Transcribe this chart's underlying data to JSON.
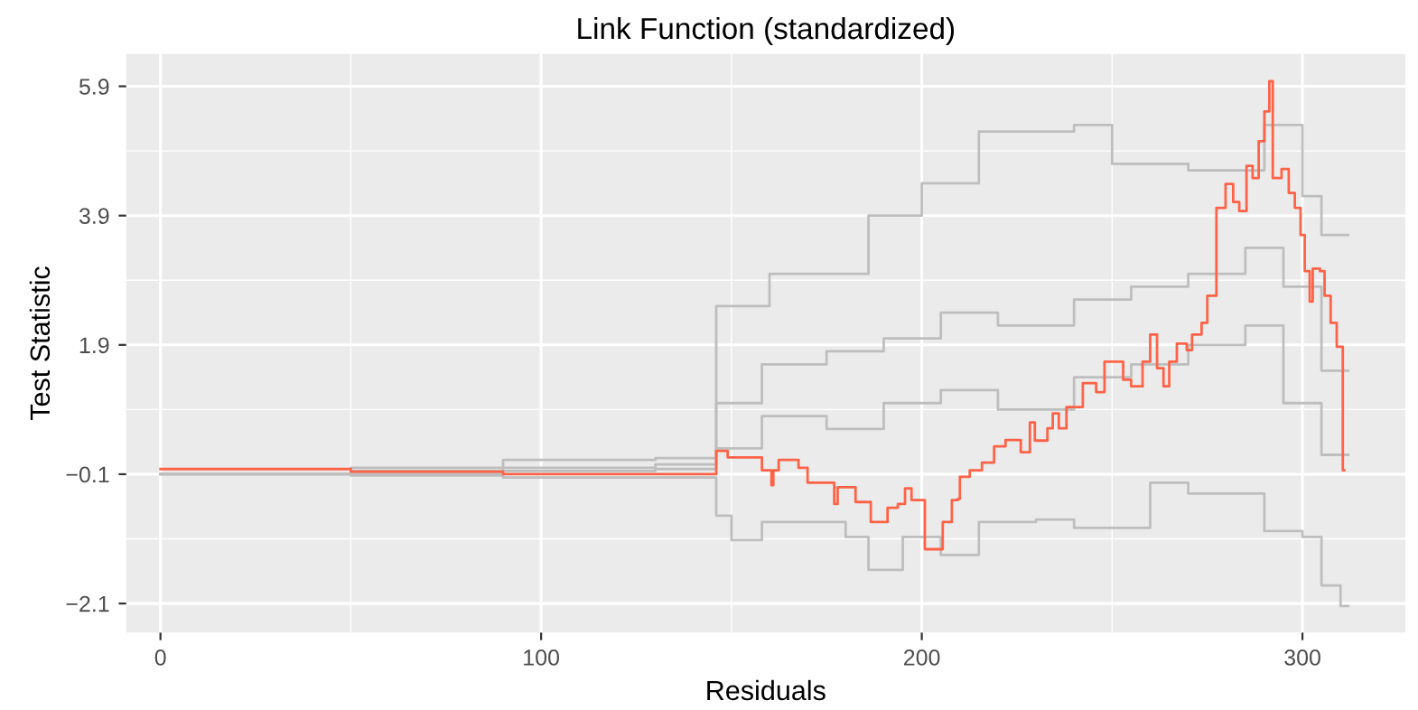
{
  "chart_data": {
    "type": "step",
    "title": "Link Function (standardized)",
    "xlabel": "Residuals",
    "ylabel": "Test Statistic",
    "xlim": [
      -9,
      327
    ],
    "ylim": [
      -2.55,
      6.4
    ],
    "xticks": [
      0,
      100,
      200,
      300
    ],
    "yticks": [
      {
        "value": -2.1,
        "label": "−2.1"
      },
      {
        "value": -0.1,
        "label": "−0.1"
      },
      1.9,
      3.9,
      5.9
    ],
    "grid": true,
    "series": [
      {
        "color": "#bebebe",
        "x": [
          0,
          50,
          90,
          130,
          146,
          160,
          186,
          200,
          215,
          240,
          250,
          270,
          290,
          300,
          305,
          312
        ],
        "values": [
          -0.1,
          0.0,
          0.12,
          0.15,
          2.5,
          3.0,
          3.9,
          4.4,
          5.2,
          5.3,
          4.7,
          4.6,
          5.3,
          4.2,
          3.6,
          3.6
        ]
      },
      {
        "color": "#bebebe",
        "x": [
          0,
          50,
          90,
          130,
          146,
          158,
          175,
          190,
          205,
          220,
          240,
          255,
          270,
          285,
          295,
          305,
          312
        ],
        "values": [
          -0.1,
          -0.05,
          0.0,
          0.05,
          1.0,
          1.6,
          1.8,
          2.0,
          2.4,
          2.2,
          2.6,
          2.8,
          3.0,
          3.4,
          2.8,
          1.5,
          1.5
        ]
      },
      {
        "color": "#bebebe",
        "x": [
          0,
          50,
          90,
          130,
          146,
          158,
          175,
          190,
          205,
          220,
          240,
          255,
          270,
          285,
          295,
          305,
          312
        ],
        "values": [
          -0.1,
          -0.08,
          -0.05,
          -0.02,
          0.3,
          0.8,
          0.6,
          1.0,
          1.2,
          0.9,
          1.4,
          1.6,
          1.9,
          2.2,
          1.0,
          0.2,
          0.2
        ]
      },
      {
        "color": "#bebebe",
        "x": [
          0,
          50,
          90,
          130,
          146,
          150,
          158,
          180,
          186,
          195,
          205,
          215,
          230,
          240,
          260,
          270,
          290,
          300,
          305,
          310,
          312
        ],
        "values": [
          -0.1,
          -0.12,
          -0.15,
          -0.15,
          -0.74,
          -1.12,
          -0.84,
          -1.07,
          -1.58,
          -1.07,
          -1.35,
          -0.84,
          -0.8,
          -0.93,
          -0.23,
          -0.4,
          -0.98,
          -1.07,
          -1.82,
          -2.14,
          -2.14
        ]
      },
      {
        "color": "#ff6347",
        "x": [
          0,
          50,
          90,
          130,
          146,
          149,
          158,
          160.5,
          161,
          162.4,
          167.6,
          170,
          177,
          177.9,
          182.6,
          186.6,
          191,
          193.7,
          195.6,
          197.3,
          200.8,
          205.5,
          207.9,
          209.5,
          210,
          212.6,
          215.8,
          219,
          222,
          226,
          228.4,
          229.7,
          233,
          234.4,
          236,
          238,
          242.3,
          245.8,
          248,
          252.9,
          255,
          258,
          260,
          261.8,
          263.5,
          265,
          267,
          269.6,
          271,
          273.5,
          275,
          277.4,
          279.8,
          281.8,
          283.4,
          285.3,
          286.9,
          288.5,
          290,
          291.3,
          292.2,
          294.5,
          296.4,
          298,
          299.5,
          300.6,
          301.9,
          302.7,
          304.6,
          305.8,
          307.4,
          309,
          310.6,
          311
        ],
        "values": [
          -0.02,
          -0.06,
          -0.1,
          -0.1,
          0.26,
          0.16,
          -0.04,
          -0.27,
          -0.04,
          0.12,
          0.0,
          -0.23,
          -0.56,
          -0.3,
          -0.53,
          -0.84,
          -0.62,
          -0.56,
          -0.32,
          -0.5,
          -1.26,
          -0.84,
          -0.5,
          -0.48,
          -0.14,
          -0.04,
          0.08,
          0.33,
          0.43,
          0.24,
          0.7,
          0.42,
          0.61,
          0.84,
          0.61,
          0.94,
          1.31,
          1.17,
          1.64,
          1.36,
          1.26,
          1.64,
          2.06,
          1.54,
          1.26,
          1.64,
          1.92,
          1.82,
          2.06,
          2.24,
          2.66,
          4.02,
          4.39,
          4.11,
          3.97,
          4.67,
          4.48,
          5.05,
          5.51,
          5.98,
          4.48,
          4.62,
          4.25,
          4.02,
          3.6,
          3.04,
          2.57,
          3.08,
          3.04,
          2.66,
          2.24,
          1.87,
          -0.04,
          -0.04
        ]
      }
    ]
  }
}
